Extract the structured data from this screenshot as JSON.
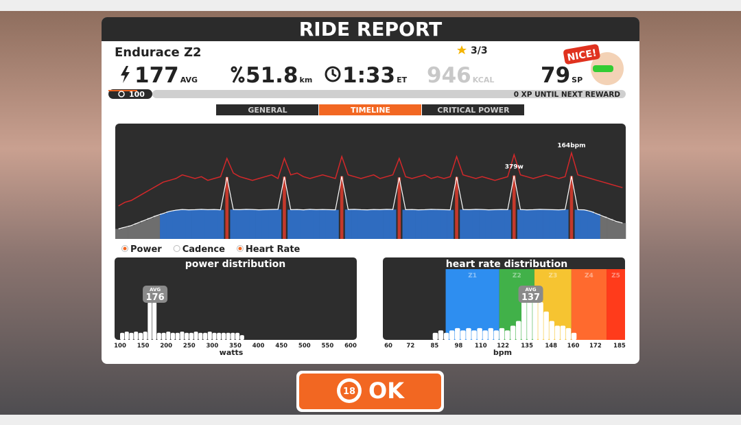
{
  "header": {
    "title": "RIDE REPORT"
  },
  "workout": {
    "name": "Endurace Z2",
    "stars": "3/3"
  },
  "stats": {
    "power": {
      "value": "177",
      "unit": "AVG"
    },
    "distance": {
      "value": "51.8",
      "unit": "km"
    },
    "time": {
      "value": "1:33",
      "unit": "ET"
    },
    "calories": {
      "value": "946",
      "unit": "KCAL"
    },
    "sport_points": {
      "value": "79",
      "unit": "SP"
    }
  },
  "badge": "NICE!",
  "progress": {
    "level": "100",
    "text": "0 XP UNTIL NEXT REWARD"
  },
  "tabs": {
    "items": [
      "GENERAL",
      "TIMELINE",
      "CRITICAL POWER"
    ],
    "active": 1
  },
  "timeline": {
    "peak_power_label": "379w",
    "peak_hr_label": "164bpm",
    "power_ylim": [
      0,
      690
    ],
    "hr_ylim": [
      117,
      180
    ],
    "power_zones": [
      {
        "min": 0,
        "color": "#6e6e6e"
      },
      {
        "min": 150,
        "color": "#2f6cc0"
      },
      {
        "min": 250,
        "color": "#c4392c"
      }
    ],
    "hr_color": "#d4282a",
    "power": [
      60,
      70,
      80,
      95,
      110,
      125,
      140,
      152,
      165,
      172,
      176,
      174,
      175,
      177,
      175,
      176,
      174,
      370,
      176,
      175,
      177,
      176,
      174,
      175,
      176,
      177,
      372,
      175,
      176,
      174,
      177,
      175,
      176,
      175,
      174,
      375,
      176,
      177,
      175,
      174,
      176,
      175,
      177,
      176,
      368,
      175,
      176,
      174,
      175,
      177,
      176,
      175,
      174,
      371,
      176,
      175,
      177,
      176,
      174,
      175,
      176,
      175,
      379,
      176,
      174,
      175,
      177,
      176,
      175,
      174,
      176,
      376,
      175,
      174,
      165,
      150,
      135,
      120,
      105,
      95
    ],
    "heart_rate": [
      135,
      137,
      138,
      140,
      142,
      144,
      146,
      148,
      149,
      150,
      152,
      151,
      150,
      151,
      149,
      150,
      151,
      161,
      153,
      151,
      150,
      149,
      150,
      151,
      152,
      150,
      161,
      152,
      153,
      151,
      150,
      151,
      152,
      151,
      150,
      162,
      152,
      151,
      150,
      151,
      152,
      150,
      151,
      152,
      161,
      151,
      150,
      151,
      152,
      150,
      151,
      150,
      151,
      162,
      152,
      151,
      150,
      151,
      150,
      149,
      150,
      151,
      163,
      152,
      151,
      150,
      151,
      152,
      151,
      150,
      151,
      164,
      152,
      151,
      150,
      149,
      148,
      147,
      146,
      145
    ]
  },
  "legend": [
    {
      "name": "Power",
      "color": "#f26722"
    },
    {
      "name": "Cadence",
      "color": "#ffffff"
    },
    {
      "name": "Heart Rate",
      "color": "#f26722"
    }
  ],
  "power_distribution": {
    "type": "histogram",
    "title": "power distribution",
    "xlabel": "watts",
    "avg_label": "AVG",
    "avg": 176,
    "xlim": [
      100,
      600
    ],
    "xticks": [
      100,
      150,
      200,
      250,
      300,
      350,
      400,
      450,
      500,
      550,
      600
    ],
    "ylim": [
      0,
      30
    ],
    "bins": [
      100,
      110,
      120,
      130,
      140,
      150,
      160,
      170,
      180,
      190,
      200,
      210,
      220,
      230,
      240,
      250,
      260,
      270,
      280,
      290,
      300,
      310,
      320,
      330,
      340,
      350,
      360,
      370
    ],
    "values": [
      3,
      3.5,
      3,
      3.5,
      3,
      3.5,
      16,
      16,
      3,
      3,
      3.5,
      3,
      3,
      3.5,
      3,
      3,
      3.5,
      3,
      3,
      3.5,
      3,
      3,
      3,
      3,
      3,
      3,
      2
    ]
  },
  "hr_distribution": {
    "type": "histogram",
    "title": "heart rate distribution",
    "xlabel": "bpm",
    "avg_label": "AVG",
    "avg": 137,
    "xlim": [
      60,
      188
    ],
    "xticks": [
      60,
      72,
      85,
      98,
      110,
      122,
      135,
      148,
      160,
      172,
      185
    ],
    "ylim": [
      0,
      30
    ],
    "zones": [
      {
        "name": "Z1",
        "from": 91,
        "to": 120,
        "color": "#2e8ef0"
      },
      {
        "name": "Z2",
        "from": 120,
        "to": 139,
        "color": "#41b149"
      },
      {
        "name": "Z3",
        "from": 139,
        "to": 159,
        "color": "#f6c431"
      },
      {
        "name": "Z4",
        "from": 159,
        "to": 178,
        "color": "#ff6a2e"
      },
      {
        "name": "Z5",
        "from": 178,
        "to": 188,
        "color": "#ff3b1b"
      }
    ],
    "bins": [
      84,
      87,
      90,
      93,
      96,
      99,
      102,
      105,
      108,
      111,
      114,
      117,
      120,
      123,
      126,
      129,
      132,
      135,
      138,
      141,
      144,
      147,
      150,
      153,
      156,
      159,
      162
    ],
    "values": [
      3,
      4,
      3,
      4,
      5,
      4,
      5,
      4,
      5,
      4,
      5,
      4,
      5,
      4,
      6,
      8,
      20,
      22,
      20,
      16,
      12,
      8,
      6,
      6,
      5,
      3
    ]
  },
  "button": {
    "timer": "18",
    "label": "OK"
  }
}
